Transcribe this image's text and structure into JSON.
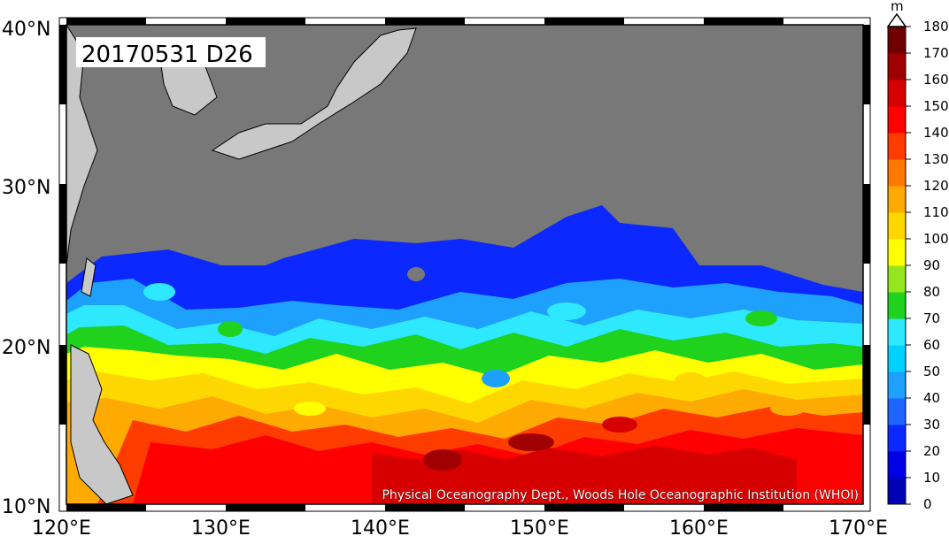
{
  "stamp": "20170531 D26",
  "credit": "Physical Oceanography Dept., Woods Hole Oceanographic Institution (WHOI)",
  "colorbar": {
    "unit": "m",
    "ticks": [
      "0",
      "10",
      "20",
      "30",
      "40",
      "50",
      "60",
      "70",
      "80",
      "90",
      "100",
      "110",
      "120",
      "130",
      "140",
      "150",
      "160",
      "170",
      "180"
    ],
    "colors": [
      "#000080",
      "#0000b4",
      "#0000e6",
      "#0a28ff",
      "#1e64ff",
      "#1ea0ff",
      "#00d2ff",
      "#2ee8ff",
      "#1ed21e",
      "#96e61e",
      "#ffff00",
      "#ffd700",
      "#ffaa00",
      "#ff7800",
      "#ff3c00",
      "#ff0000",
      "#d70000",
      "#a00000",
      "#6e0000",
      "#3c0000"
    ]
  },
  "axes": {
    "lon_labels": [
      "120°E",
      "130°E",
      "140°E",
      "150°E",
      "160°E",
      "170°E"
    ],
    "lat_labels": [
      "40°N",
      "30°N",
      "20°N",
      "10°N"
    ],
    "lon_range": [
      120,
      170
    ],
    "lat_range": [
      10,
      40
    ]
  },
  "colors": {
    "land": "#c8c8c8",
    "no_data": "#787878",
    "frame": "#000000"
  }
}
